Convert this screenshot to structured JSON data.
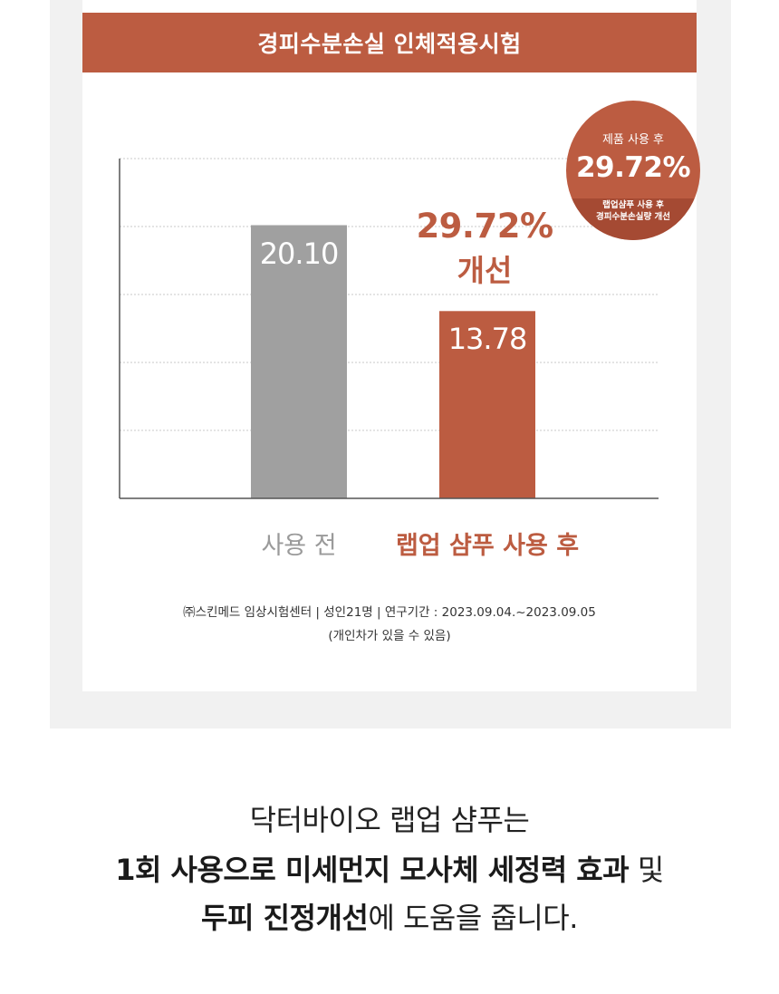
{
  "title": "경피수분손실 인체적용시험",
  "badge": {
    "top_label": "제품 사용 후",
    "value": "29.72%",
    "sub_line1": "랩업샴푸 사용 후",
    "sub_line2": "경피수분손실량 개선"
  },
  "improvement": {
    "percent": "29.72%",
    "label": "개선"
  },
  "chart_data": {
    "type": "bar",
    "title": "경피수분손실 인체적용시험",
    "categories": [
      "사용 전",
      "랩업 샴푸 사용 후"
    ],
    "values": [
      20.1,
      13.78
    ],
    "value_labels": [
      "20.10",
      "13.78"
    ],
    "bar_colors": [
      "#a0a0a0",
      "#bc5c41"
    ],
    "label_colors": [
      "#9a9a9a",
      "#bc5c41"
    ],
    "ylim": [
      0,
      25
    ],
    "grid": true,
    "xlabel": "",
    "ylabel": ""
  },
  "footnote": {
    "line1": "㈜스킨메드 임상시험센터 | 성인21명 | 연구기간 : 2023.09.04.~2023.09.05",
    "line2": "(개인차가 있을 수 있음)"
  },
  "caption": {
    "line1": "닥터바이오 랩업 샴푸는",
    "line2_bold": "1회 사용으로 미세먼지 모사체 세정력 효과",
    "line2_regular": " 및",
    "line3_bold": "두피 진정개선",
    "line3_regular": "에 도움을 줍니다."
  },
  "colors": {
    "accent": "#bc5c41",
    "accent_dark": "#a54a33",
    "bar_before": "#a0a0a0",
    "panel": "#f1f1f1"
  }
}
